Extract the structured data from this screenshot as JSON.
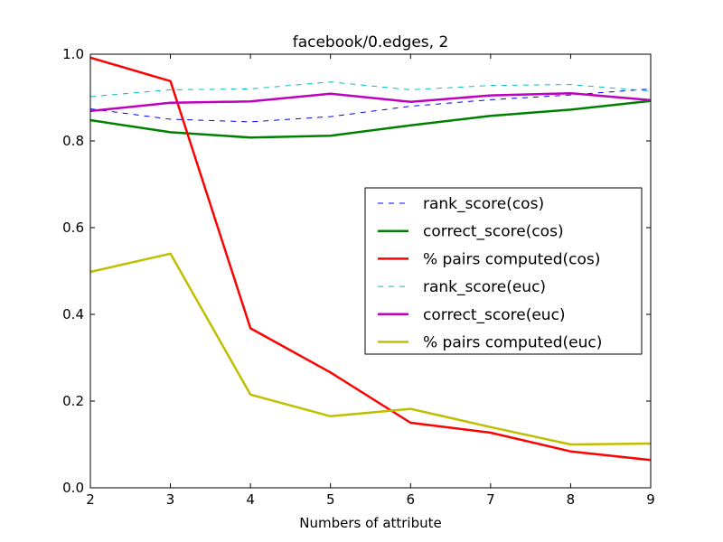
{
  "chart_data": {
    "type": "line",
    "title": "facebook/0.edges, 2",
    "xlabel": "Numbers of attribute",
    "ylabel": "",
    "xlim": [
      2,
      9
    ],
    "ylim": [
      0.0,
      1.0
    ],
    "x": [
      2,
      3,
      4,
      5,
      6,
      7,
      8,
      9
    ],
    "xticks": [
      "2",
      "3",
      "4",
      "5",
      "6",
      "7",
      "8",
      "9"
    ],
    "yticks": [
      "0.0",
      "0.2",
      "0.4",
      "0.6",
      "0.8",
      "1.0"
    ],
    "grid": false,
    "legend_position": "center-right",
    "series": [
      {
        "name": "rank_score(cos)",
        "color": "#0000ff",
        "style": "dashed",
        "width": 1,
        "values": [
          0.874,
          0.85,
          0.844,
          0.856,
          0.88,
          0.895,
          0.906,
          0.92
        ]
      },
      {
        "name": "correct_score(cos)",
        "color": "#008000",
        "style": "solid",
        "width": 2.5,
        "values": [
          0.848,
          0.82,
          0.808,
          0.812,
          0.836,
          0.858,
          0.872,
          0.892
        ]
      },
      {
        "name": "% pairs computed(cos)",
        "color": "#ff0000",
        "style": "solid",
        "width": 2.5,
        "values": [
          0.992,
          0.938,
          0.368,
          0.266,
          0.15,
          0.127,
          0.084,
          0.064
        ]
      },
      {
        "name": "rank_score(euc)",
        "color": "#00bfbf",
        "style": "dashed",
        "width": 1,
        "values": [
          0.902,
          0.918,
          0.92,
          0.936,
          0.918,
          0.928,
          0.93,
          0.915
        ]
      },
      {
        "name": "correct_score(euc)",
        "color": "#bf00bf",
        "style": "solid",
        "width": 2.5,
        "values": [
          0.869,
          0.888,
          0.891,
          0.909,
          0.89,
          0.905,
          0.91,
          0.894
        ]
      },
      {
        "name": "% pairs computed(euc)",
        "color": "#bfbf00",
        "style": "solid",
        "width": 2.5,
        "values": [
          0.498,
          0.54,
          0.215,
          0.165,
          0.182,
          0.14,
          0.1,
          0.102
        ]
      }
    ]
  }
}
